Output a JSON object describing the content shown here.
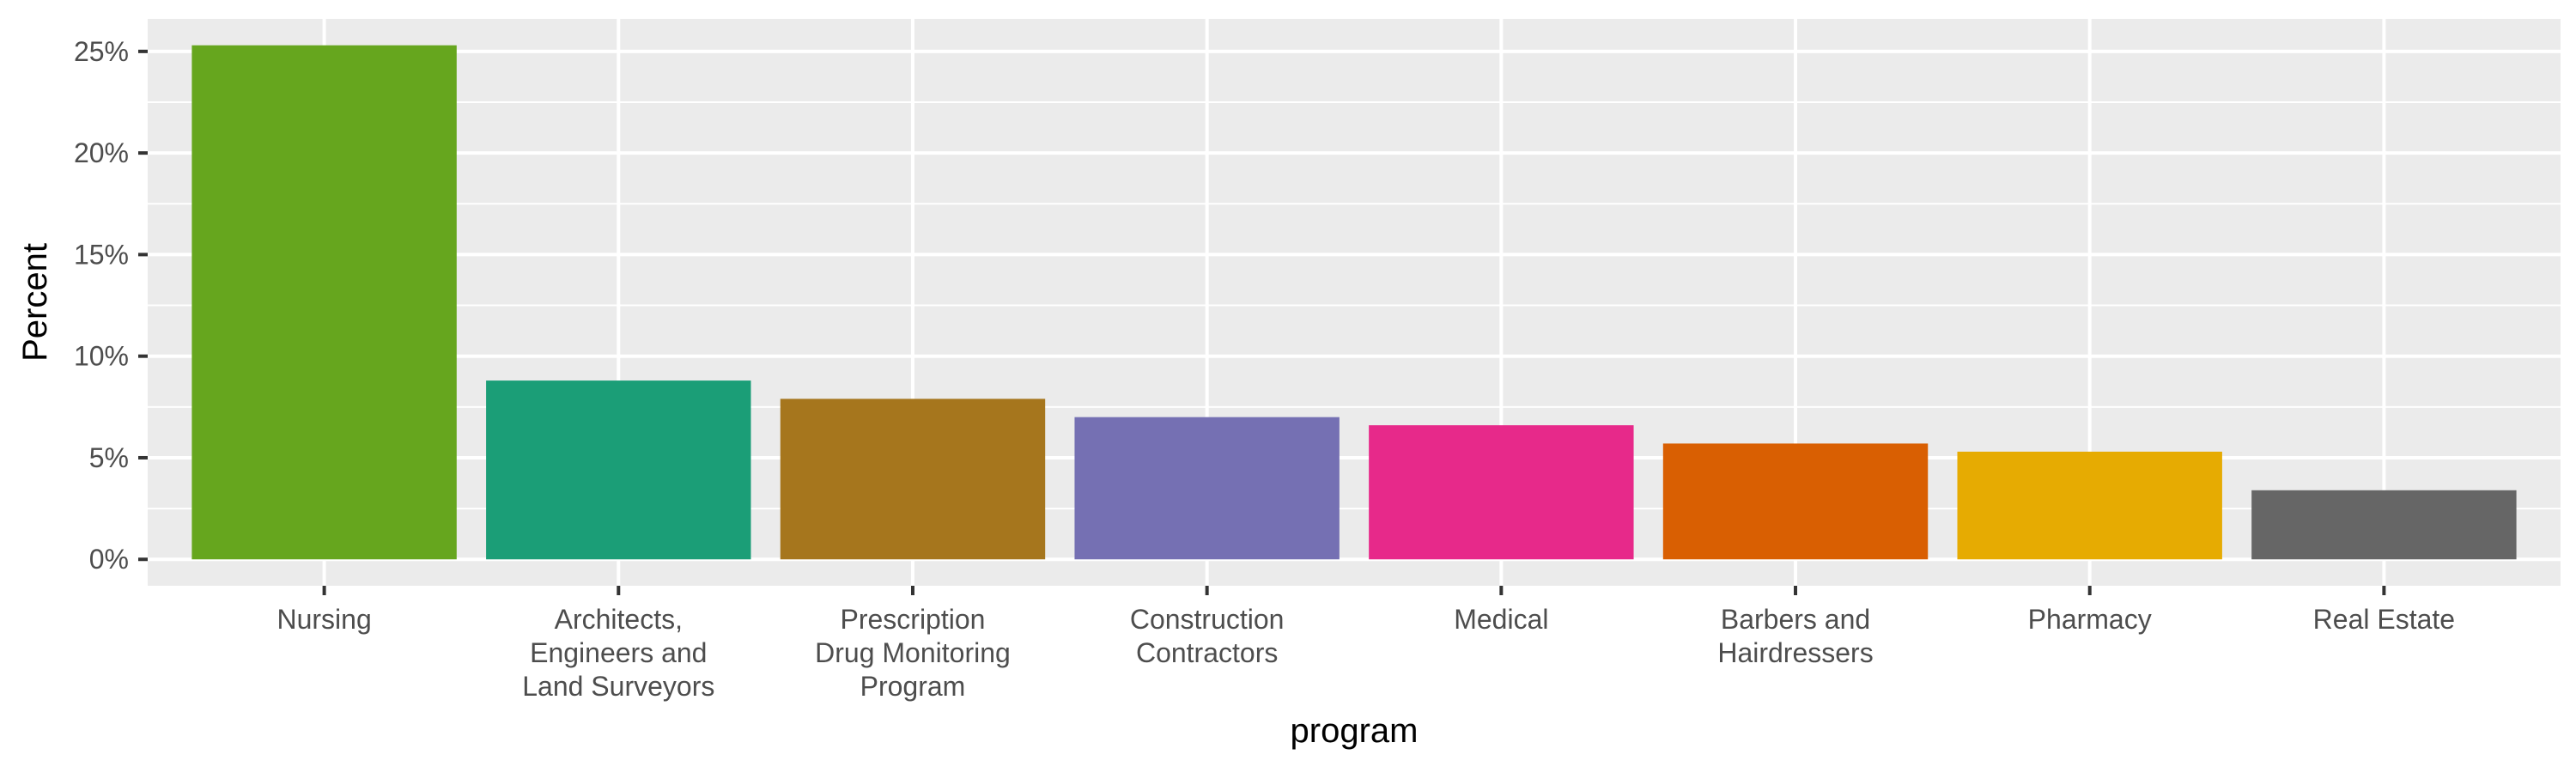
{
  "chart_data": {
    "type": "bar",
    "xlabel": "program",
    "ylabel": "Percent",
    "categories": [
      [
        "Nursing"
      ],
      [
        "Architects,",
        "Engineers and",
        "Land Surveyors"
      ],
      [
        "Prescription",
        "Drug Monitoring",
        "Program"
      ],
      [
        "Construction",
        "Contractors"
      ],
      [
        "Medical"
      ],
      [
        "Barbers and",
        "Hairdressers"
      ],
      [
        "Pharmacy"
      ],
      [
        "Real Estate"
      ]
    ],
    "values": [
      25.3,
      8.8,
      7.9,
      7.0,
      6.6,
      5.7,
      5.3,
      3.4
    ],
    "colors": [
      "#66A61E",
      "#1B9E77",
      "#A6761D",
      "#7570B3",
      "#E7298A",
      "#D95F02",
      "#E6AB02",
      "#666666"
    ],
    "ylim": [
      -1.3,
      26.6
    ],
    "yticks": [
      0,
      5,
      10,
      15,
      20,
      25
    ],
    "ytick_labels": [
      "0%",
      "5%",
      "10%",
      "15%",
      "20%",
      "25%"
    ],
    "panel_background": "#EBEBEB",
    "grid": true,
    "legend": "none"
  }
}
